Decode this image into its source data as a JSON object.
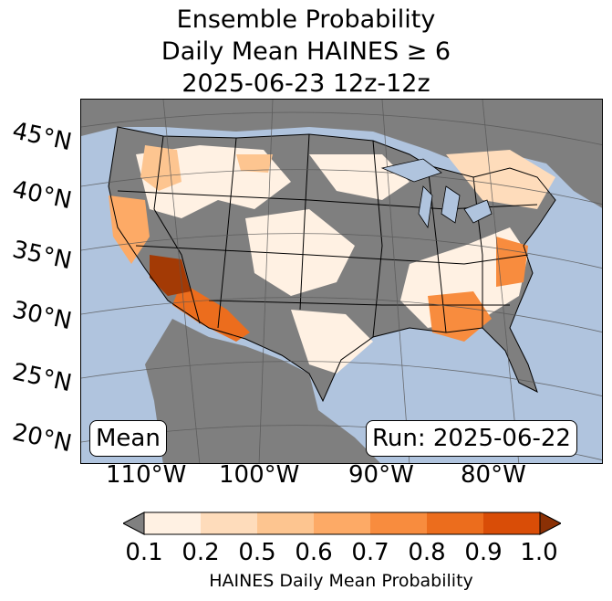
{
  "title": {
    "line1": "Ensemble Probability",
    "line2": "Daily Mean HAINES ≥ 6",
    "line3": "2025-06-23 12z-12z"
  },
  "latitude_labels": [
    "45°N",
    "40°N",
    "35°N",
    "30°N",
    "25°N",
    "20°N"
  ],
  "longitude_labels": [
    "110°W",
    "100°W",
    "90°W",
    "80°W"
  ],
  "mean_label": "Mean",
  "run_label": "Run: 2025-06-22",
  "colorbar": {
    "ticks": [
      "0.1",
      "0.2",
      "0.5",
      "0.6",
      "0.7",
      "0.8",
      "0.9",
      "1.0"
    ],
    "colors": [
      "#fff1e3",
      "#fedcbb",
      "#fdc590",
      "#fdaa66",
      "#f88c3e",
      "#ec6d1d",
      "#d94d07",
      "#a33a05"
    ],
    "under_color": "#808080",
    "label": "HAINES Daily Mean Probability"
  },
  "map_colors": {
    "ocean": "#b0c4de",
    "no_data": "#7f7f7f",
    "land_low": "#fff1e3"
  }
}
